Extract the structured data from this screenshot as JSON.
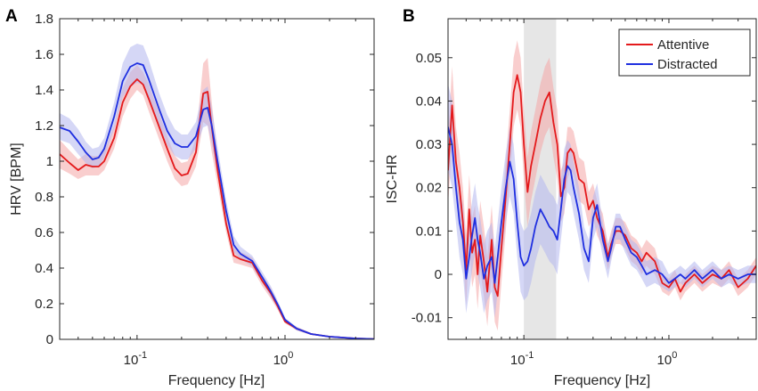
{
  "chart_data": [
    {
      "panel": "A",
      "type": "line",
      "x_scale": "log",
      "xlabel": "Frequency [Hz]",
      "ylabel": "HRV [BPM]",
      "xlim": [
        0.03,
        4
      ],
      "ylim": [
        0,
        1.8
      ],
      "yticks": [
        0,
        0.2,
        0.4,
        0.6,
        0.8,
        1,
        1.2,
        1.4,
        1.6,
        1.8
      ],
      "ytick_labels": [
        "0",
        "0.2",
        "0.4",
        "0.6",
        "0.8",
        "1",
        "1.2",
        "1.4",
        "1.6",
        "1.8"
      ],
      "xticks": [
        0.1,
        1
      ],
      "xtick_labels": [
        {
          "base": "10",
          "exp": "-1"
        },
        {
          "base": "10",
          "exp": "0"
        }
      ],
      "grid": false,
      "series": [
        {
          "color": "#e41a1c",
          "band_color": "#f4a6a6",
          "x": [
            0.03,
            0.035,
            0.04,
            0.045,
            0.05,
            0.055,
            0.06,
            0.07,
            0.08,
            0.09,
            0.1,
            0.11,
            0.12,
            0.14,
            0.16,
            0.18,
            0.2,
            0.22,
            0.25,
            0.28,
            0.3,
            0.32,
            0.35,
            0.4,
            0.45,
            0.5,
            0.6,
            0.7,
            0.8,
            0.9,
            1.0,
            1.2,
            1.5,
            2.0,
            3.0,
            4.0
          ],
          "y": [
            1.04,
            0.99,
            0.95,
            0.98,
            0.97,
            0.97,
            1.0,
            1.13,
            1.33,
            1.42,
            1.46,
            1.43,
            1.35,
            1.2,
            1.07,
            0.96,
            0.92,
            0.93,
            1.05,
            1.38,
            1.39,
            1.19,
            0.95,
            0.65,
            0.47,
            0.45,
            0.43,
            0.33,
            0.26,
            0.18,
            0.1,
            0.06,
            0.03,
            0.015,
            0.005,
            0.002
          ],
          "lower": [
            0.96,
            0.93,
            0.9,
            0.92,
            0.92,
            0.92,
            0.95,
            1.07,
            1.25,
            1.35,
            1.4,
            1.37,
            1.28,
            1.13,
            1.0,
            0.9,
            0.86,
            0.87,
            0.97,
            1.22,
            1.2,
            1.05,
            0.87,
            0.6,
            0.43,
            0.42,
            0.4,
            0.3,
            0.23,
            0.16,
            0.09,
            0.05,
            0.025,
            0.012,
            0.004,
            0.001
          ],
          "upper": [
            1.12,
            1.06,
            1.01,
            1.04,
            1.03,
            1.03,
            1.06,
            1.2,
            1.41,
            1.5,
            1.54,
            1.5,
            1.43,
            1.28,
            1.14,
            1.03,
            0.99,
            1.0,
            1.13,
            1.55,
            1.58,
            1.33,
            1.03,
            0.7,
            0.52,
            0.49,
            0.46,
            0.36,
            0.29,
            0.2,
            0.11,
            0.07,
            0.035,
            0.018,
            0.006,
            0.003
          ]
        },
        {
          "color": "#1f2fe0",
          "band_color": "#b3b6ee",
          "x": [
            0.03,
            0.035,
            0.04,
            0.045,
            0.05,
            0.055,
            0.06,
            0.07,
            0.08,
            0.09,
            0.1,
            0.11,
            0.12,
            0.14,
            0.16,
            0.18,
            0.2,
            0.22,
            0.25,
            0.28,
            0.3,
            0.32,
            0.35,
            0.4,
            0.45,
            0.5,
            0.6,
            0.7,
            0.8,
            0.9,
            1.0,
            1.2,
            1.5,
            2.0,
            3.0,
            4.0
          ],
          "y": [
            1.19,
            1.17,
            1.11,
            1.05,
            1.01,
            1.02,
            1.07,
            1.25,
            1.45,
            1.53,
            1.55,
            1.54,
            1.46,
            1.3,
            1.17,
            1.1,
            1.08,
            1.08,
            1.14,
            1.29,
            1.3,
            1.2,
            1.0,
            0.72,
            0.53,
            0.48,
            0.44,
            0.35,
            0.27,
            0.19,
            0.11,
            0.06,
            0.03,
            0.015,
            0.005,
            0.002
          ],
          "lower": [
            1.12,
            1.1,
            1.04,
            0.99,
            0.96,
            0.97,
            1.02,
            1.18,
            1.36,
            1.42,
            1.44,
            1.43,
            1.36,
            1.21,
            1.09,
            1.03,
            1.01,
            1.01,
            1.07,
            1.19,
            1.2,
            1.1,
            0.93,
            0.67,
            0.49,
            0.45,
            0.41,
            0.32,
            0.24,
            0.17,
            0.1,
            0.05,
            0.025,
            0.012,
            0.004,
            0.001
          ],
          "upper": [
            1.27,
            1.24,
            1.18,
            1.11,
            1.07,
            1.08,
            1.13,
            1.33,
            1.55,
            1.64,
            1.66,
            1.65,
            1.57,
            1.39,
            1.26,
            1.18,
            1.15,
            1.15,
            1.22,
            1.4,
            1.42,
            1.3,
            1.08,
            0.78,
            0.58,
            0.52,
            0.47,
            0.38,
            0.3,
            0.21,
            0.12,
            0.07,
            0.035,
            0.018,
            0.006,
            0.003
          ]
        }
      ]
    },
    {
      "panel": "B",
      "type": "line",
      "x_scale": "log",
      "xlabel": "Frequency [Hz]",
      "ylabel": "ISC-HR",
      "xlim": [
        0.03,
        4
      ],
      "ylim": [
        -0.015,
        0.059
      ],
      "yticks": [
        -0.01,
        0,
        0.01,
        0.02,
        0.03,
        0.04,
        0.05
      ],
      "ytick_labels": [
        "-0.01",
        "0",
        "0.01",
        "0.02",
        "0.03",
        "0.04",
        "0.05"
      ],
      "xticks": [
        0.1,
        1
      ],
      "xtick_labels": [
        {
          "base": "10",
          "exp": "-1"
        },
        {
          "base": "10",
          "exp": "0"
        }
      ],
      "grid": false,
      "shaded_region": {
        "x": [
          0.1,
          0.167
        ],
        "color": "#e6e6e6"
      },
      "legend_placement": "top-right",
      "series": [
        {
          "name": "Attentive",
          "color": "#e41a1c",
          "band_color": "#f4a6a6",
          "x": [
            0.03,
            0.032,
            0.034,
            0.036,
            0.038,
            0.04,
            0.042,
            0.044,
            0.046,
            0.048,
            0.05,
            0.053,
            0.056,
            0.06,
            0.063,
            0.066,
            0.07,
            0.075,
            0.08,
            0.085,
            0.09,
            0.095,
            0.1,
            0.106,
            0.112,
            0.12,
            0.13,
            0.14,
            0.15,
            0.16,
            0.17,
            0.18,
            0.19,
            0.2,
            0.21,
            0.22,
            0.24,
            0.26,
            0.28,
            0.3,
            0.32,
            0.35,
            0.38,
            0.4,
            0.43,
            0.46,
            0.5,
            0.55,
            0.6,
            0.65,
            0.7,
            0.8,
            0.9,
            1.0,
            1.1,
            1.2,
            1.3,
            1.5,
            1.7,
            2.0,
            2.3,
            2.6,
            3.0,
            3.5,
            4.0
          ],
          "y": [
            0.024,
            0.039,
            0.026,
            0.02,
            0.012,
            0.001,
            0.015,
            0.005,
            0.008,
            0.0,
            0.009,
            0.003,
            -0.004,
            0.008,
            -0.003,
            -0.005,
            0.006,
            0.018,
            0.03,
            0.042,
            0.046,
            0.042,
            0.03,
            0.019,
            0.025,
            0.03,
            0.036,
            0.04,
            0.042,
            0.035,
            0.03,
            0.018,
            0.02,
            0.028,
            0.029,
            0.028,
            0.022,
            0.021,
            0.015,
            0.017,
            0.013,
            0.01,
            0.004,
            0.007,
            0.01,
            0.01,
            0.009,
            0.006,
            0.005,
            0.003,
            0.005,
            0.003,
            -0.002,
            -0.003,
            -0.001,
            -0.004,
            -0.002,
            0.0,
            -0.002,
            0.0,
            -0.001,
            0.001,
            -0.003,
            -0.001,
            0.002
          ],
          "lower": [
            0.016,
            0.03,
            0.018,
            0.012,
            0.004,
            -0.007,
            0.007,
            -0.003,
            0.0,
            -0.008,
            0.001,
            -0.005,
            -0.012,
            0.0,
            -0.011,
            -0.013,
            -0.002,
            0.01,
            0.022,
            0.034,
            0.038,
            0.034,
            0.022,
            0.011,
            0.017,
            0.022,
            0.028,
            0.032,
            0.034,
            0.027,
            0.022,
            0.012,
            0.014,
            0.022,
            0.024,
            0.023,
            0.017,
            0.016,
            0.011,
            0.013,
            0.009,
            0.006,
            0.001,
            0.004,
            0.007,
            0.007,
            0.006,
            0.003,
            0.002,
            0.0,
            0.002,
            0.0,
            -0.004,
            -0.005,
            -0.003,
            -0.006,
            -0.004,
            -0.002,
            -0.004,
            -0.002,
            -0.003,
            -0.001,
            -0.005,
            -0.003,
            0.0
          ],
          "upper": [
            0.032,
            0.048,
            0.034,
            0.028,
            0.02,
            0.009,
            0.023,
            0.013,
            0.016,
            0.008,
            0.017,
            0.011,
            0.004,
            0.016,
            0.005,
            0.003,
            0.014,
            0.026,
            0.038,
            0.05,
            0.054,
            0.05,
            0.038,
            0.027,
            0.033,
            0.038,
            0.044,
            0.048,
            0.05,
            0.043,
            0.038,
            0.024,
            0.026,
            0.034,
            0.034,
            0.033,
            0.027,
            0.026,
            0.019,
            0.021,
            0.017,
            0.014,
            0.007,
            0.01,
            0.013,
            0.013,
            0.012,
            0.009,
            0.008,
            0.006,
            0.008,
            0.006,
            0.0,
            -0.001,
            0.001,
            -0.002,
            0.0,
            0.002,
            0.0,
            0.002,
            0.001,
            0.003,
            -0.001,
            0.001,
            0.004
          ]
        },
        {
          "name": "Distracted",
          "color": "#1f2fe0",
          "band_color": "#b3b6ee",
          "x": [
            0.03,
            0.032,
            0.034,
            0.036,
            0.038,
            0.04,
            0.042,
            0.044,
            0.046,
            0.048,
            0.05,
            0.053,
            0.056,
            0.06,
            0.063,
            0.066,
            0.07,
            0.075,
            0.08,
            0.085,
            0.09,
            0.095,
            0.1,
            0.106,
            0.112,
            0.12,
            0.13,
            0.14,
            0.15,
            0.16,
            0.17,
            0.18,
            0.19,
            0.2,
            0.21,
            0.22,
            0.24,
            0.26,
            0.28,
            0.3,
            0.32,
            0.35,
            0.38,
            0.4,
            0.43,
            0.46,
            0.5,
            0.55,
            0.6,
            0.65,
            0.7,
            0.8,
            0.9,
            1.0,
            1.1,
            1.2,
            1.3,
            1.5,
            1.7,
            2.0,
            2.3,
            2.6,
            3.0,
            3.5,
            4.0
          ],
          "y": [
            0.034,
            0.03,
            0.02,
            0.012,
            0.008,
            -0.001,
            0.004,
            0.009,
            0.013,
            0.008,
            0.005,
            -0.001,
            0.002,
            0.004,
            -0.002,
            0.004,
            0.012,
            0.02,
            0.026,
            0.022,
            0.012,
            0.004,
            0.002,
            0.003,
            0.006,
            0.011,
            0.015,
            0.013,
            0.011,
            0.01,
            0.008,
            0.015,
            0.022,
            0.025,
            0.024,
            0.02,
            0.014,
            0.006,
            0.003,
            0.013,
            0.016,
            0.008,
            0.003,
            0.006,
            0.011,
            0.011,
            0.008,
            0.005,
            0.004,
            0.002,
            0.0,
            0.001,
            0.0,
            -0.002,
            -0.001,
            0.0,
            -0.001,
            0.001,
            -0.001,
            0.001,
            -0.001,
            0.0,
            -0.001,
            0.0,
            0.0
          ],
          "lower": [
            0.024,
            0.02,
            0.012,
            0.004,
            0.0,
            -0.009,
            -0.004,
            0.001,
            0.005,
            0.0,
            -0.003,
            -0.009,
            -0.006,
            -0.004,
            -0.01,
            -0.004,
            0.004,
            0.012,
            0.018,
            0.014,
            0.004,
            -0.004,
            -0.006,
            -0.005,
            -0.002,
            0.003,
            0.007,
            0.005,
            0.003,
            0.002,
            0.0,
            0.008,
            0.015,
            0.019,
            0.018,
            0.014,
            0.008,
            0.001,
            -0.002,
            0.008,
            0.011,
            0.004,
            -0.001,
            0.003,
            0.008,
            0.008,
            0.005,
            0.002,
            0.001,
            -0.001,
            -0.003,
            -0.002,
            -0.003,
            -0.004,
            -0.003,
            -0.002,
            -0.003,
            -0.001,
            -0.003,
            -0.001,
            -0.003,
            -0.002,
            -0.003,
            -0.002,
            -0.002
          ],
          "upper": [
            0.044,
            0.04,
            0.028,
            0.02,
            0.016,
            0.007,
            0.012,
            0.017,
            0.021,
            0.016,
            0.013,
            0.007,
            0.01,
            0.012,
            0.006,
            0.012,
            0.02,
            0.028,
            0.034,
            0.03,
            0.02,
            0.012,
            0.01,
            0.011,
            0.014,
            0.019,
            0.023,
            0.021,
            0.019,
            0.018,
            0.016,
            0.022,
            0.029,
            0.031,
            0.03,
            0.026,
            0.02,
            0.011,
            0.008,
            0.018,
            0.021,
            0.012,
            0.007,
            0.009,
            0.014,
            0.014,
            0.011,
            0.008,
            0.007,
            0.005,
            0.003,
            0.004,
            0.003,
            0.0,
            0.001,
            0.002,
            0.001,
            0.003,
            0.001,
            0.003,
            0.001,
            0.002,
            0.001,
            0.002,
            0.002
          ]
        }
      ]
    }
  ],
  "figure": {
    "panel_a_letter": "A",
    "panel_b_letter": "B",
    "legend": {
      "attentive_label": "Attentive",
      "distracted_label": "Distracted"
    }
  }
}
